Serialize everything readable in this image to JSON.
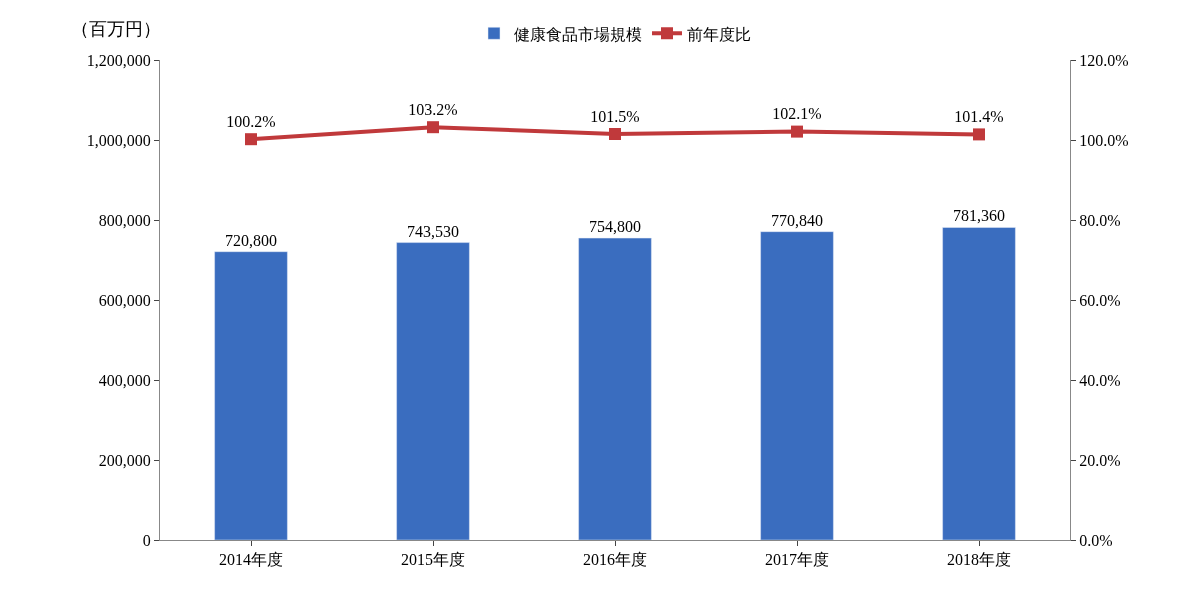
{
  "chart_data": {
    "type": "bar",
    "ylabel": "（百万円）",
    "categories": [
      "2014年度",
      "2015年度",
      "2016年度",
      "2017年度",
      "2018年度"
    ],
    "series": [
      {
        "name": "健康食品市場規模",
        "color": "#3a6dbf",
        "values": [
          720800,
          743530,
          754800,
          770840,
          781360
        ],
        "value_labels": [
          "720,800",
          "743,530",
          "754,800",
          "770,840",
          "781,360"
        ]
      },
      {
        "name": "前年度比",
        "type": "line",
        "axis": "y2",
        "color": "#c0393b",
        "values": [
          100.2,
          103.2,
          101.5,
          102.1,
          101.4
        ],
        "value_labels": [
          "100.2%",
          "103.2%",
          "101.5%",
          "102.1%",
          "101.4%"
        ]
      }
    ],
    "ylim": [
      0,
      1200000
    ],
    "yticks": [
      {
        "value": 0,
        "label": "0"
      },
      {
        "value": 200000,
        "label": "200,000"
      },
      {
        "value": 400000,
        "label": "400,000"
      },
      {
        "value": 600000,
        "label": "600,000"
      },
      {
        "value": 800000,
        "label": "800,000"
      },
      {
        "value": 1000000,
        "label": "1,000,000"
      },
      {
        "value": 1200000,
        "label": "1,200,000"
      }
    ],
    "y2lim": [
      0,
      120
    ],
    "y2ticks": [
      {
        "value": 0,
        "label": "0.0%"
      },
      {
        "value": 20,
        "label": "20.0%"
      },
      {
        "value": 40,
        "label": "40.0%"
      },
      {
        "value": 60,
        "label": "60.0%"
      },
      {
        "value": 80,
        "label": "80.0%"
      },
      {
        "value": 100,
        "label": "100.0%"
      },
      {
        "value": 120,
        "label": "120.0%"
      }
    ],
    "marker": "square",
    "line_style": "solid",
    "legend": "top"
  }
}
